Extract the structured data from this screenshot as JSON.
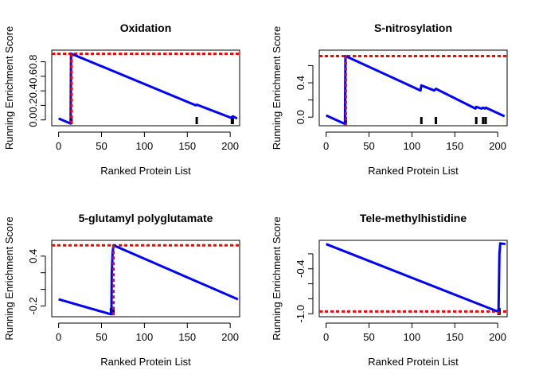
{
  "chart_data": [
    {
      "type": "line",
      "title": "Oxidation",
      "xlabel": "Ranked Protein List",
      "ylabel": "Running Enrichment Score",
      "xlim": [
        -8,
        211
      ],
      "ylim": [
        -0.08,
        0.96
      ],
      "xticks": [
        0,
        50,
        100,
        150,
        200
      ],
      "yticks": [
        0.0,
        0.2,
        0.4,
        0.6,
        0.8
      ],
      "ytick_labels": [
        "0.0",
        "0.2",
        "0.4",
        "0.6",
        "0.8"
      ],
      "max_es": 0.91,
      "peak_index": 15,
      "hits": [
        15,
        161,
        202,
        203
      ],
      "series": [
        {
          "x": [
            0,
            14,
            14.5,
            15,
            160,
            161,
            201,
            202,
            203,
            208
          ],
          "y": [
            0.02,
            -0.05,
            0.91,
            0.91,
            0.2,
            0.21,
            0.03,
            0.04,
            0.05,
            0.02
          ]
        }
      ],
      "colors": {
        "running_es": "#0000ff",
        "max_line": "#ff0000",
        "hits": "#000000"
      }
    },
    {
      "type": "line",
      "title": "S-nitrosylation",
      "xlabel": "Ranked Protein List",
      "ylabel": "Running Enrichment Score",
      "xlim": [
        -8,
        211
      ],
      "ylim": [
        -0.1,
        0.78
      ],
      "xticks": [
        0,
        50,
        100,
        150,
        200
      ],
      "yticks": [
        0.0,
        0.2,
        0.4,
        0.6
      ],
      "ytick_labels": [
        "0.0",
        "",
        "0.4",
        ""
      ],
      "max_es": 0.71,
      "peak_index": 23,
      "hits": [
        23,
        111,
        128,
        175,
        183,
        186
      ],
      "series": [
        {
          "x": [
            0,
            22,
            22.5,
            23,
            110,
            111,
            126,
            128,
            174,
            175,
            181,
            183,
            185,
            186,
            208
          ],
          "y": [
            0.02,
            -0.08,
            0.71,
            0.71,
            0.31,
            0.37,
            0.31,
            0.33,
            0.1,
            0.12,
            0.1,
            0.11,
            0.1,
            0.11,
            0.01
          ]
        }
      ],
      "colors": {
        "running_es": "#0000ff",
        "max_line": "#ff0000",
        "hits": "#000000"
      }
    },
    {
      "type": "line",
      "title": "5-glutamyl polyglutamate",
      "xlabel": "Ranked Protein List",
      "ylabel": "Running Enrichment Score",
      "xlim": [
        -8,
        211
      ],
      "ylim": [
        -0.33,
        0.59
      ],
      "xticks": [
        0,
        50,
        100,
        150,
        200
      ],
      "yticks": [
        -0.2,
        0.0,
        0.2,
        0.4
      ],
      "ytick_labels": [
        "-0.2",
        "",
        "",
        "0.4"
      ],
      "max_es": 0.53,
      "peak_index": 64,
      "hits": [
        61,
        63,
        64
      ],
      "series": [
        {
          "x": [
            0,
            61,
            61.5,
            62,
            63,
            64,
            209
          ],
          "y": [
            -0.12,
            -0.3,
            -0.28,
            0.2,
            0.45,
            0.53,
            -0.12
          ]
        }
      ],
      "colors": {
        "running_es": "#0000ff",
        "max_line": "#ff0000",
        "hits": "#000000"
      }
    },
    {
      "type": "line",
      "title": "Tele-methylhistidine",
      "xlabel": "Ranked Protein List",
      "ylabel": "Running Enrichment Score",
      "xlim": [
        -8,
        211
      ],
      "ylim": [
        -1.04,
        -0.02
      ],
      "xticks": [
        0,
        50,
        100,
        150,
        200
      ],
      "yticks": [
        -1.0,
        -0.8,
        -0.6,
        -0.4,
        -0.2
      ],
      "ytick_labels": [
        "-1.0",
        "",
        "",
        "-0.4",
        ""
      ],
      "max_es": -0.97,
      "peak_index": 201,
      "hits": [
        201,
        202
      ],
      "series": [
        {
          "x": [
            0,
            200,
            201,
            202,
            203,
            209
          ],
          "y": [
            -0.07,
            -0.97,
            -0.96,
            -0.2,
            -0.06,
            -0.07
          ]
        }
      ],
      "colors": {
        "running_es": "#0000ff",
        "max_line": "#ff0000",
        "hits": "#000000"
      }
    }
  ]
}
